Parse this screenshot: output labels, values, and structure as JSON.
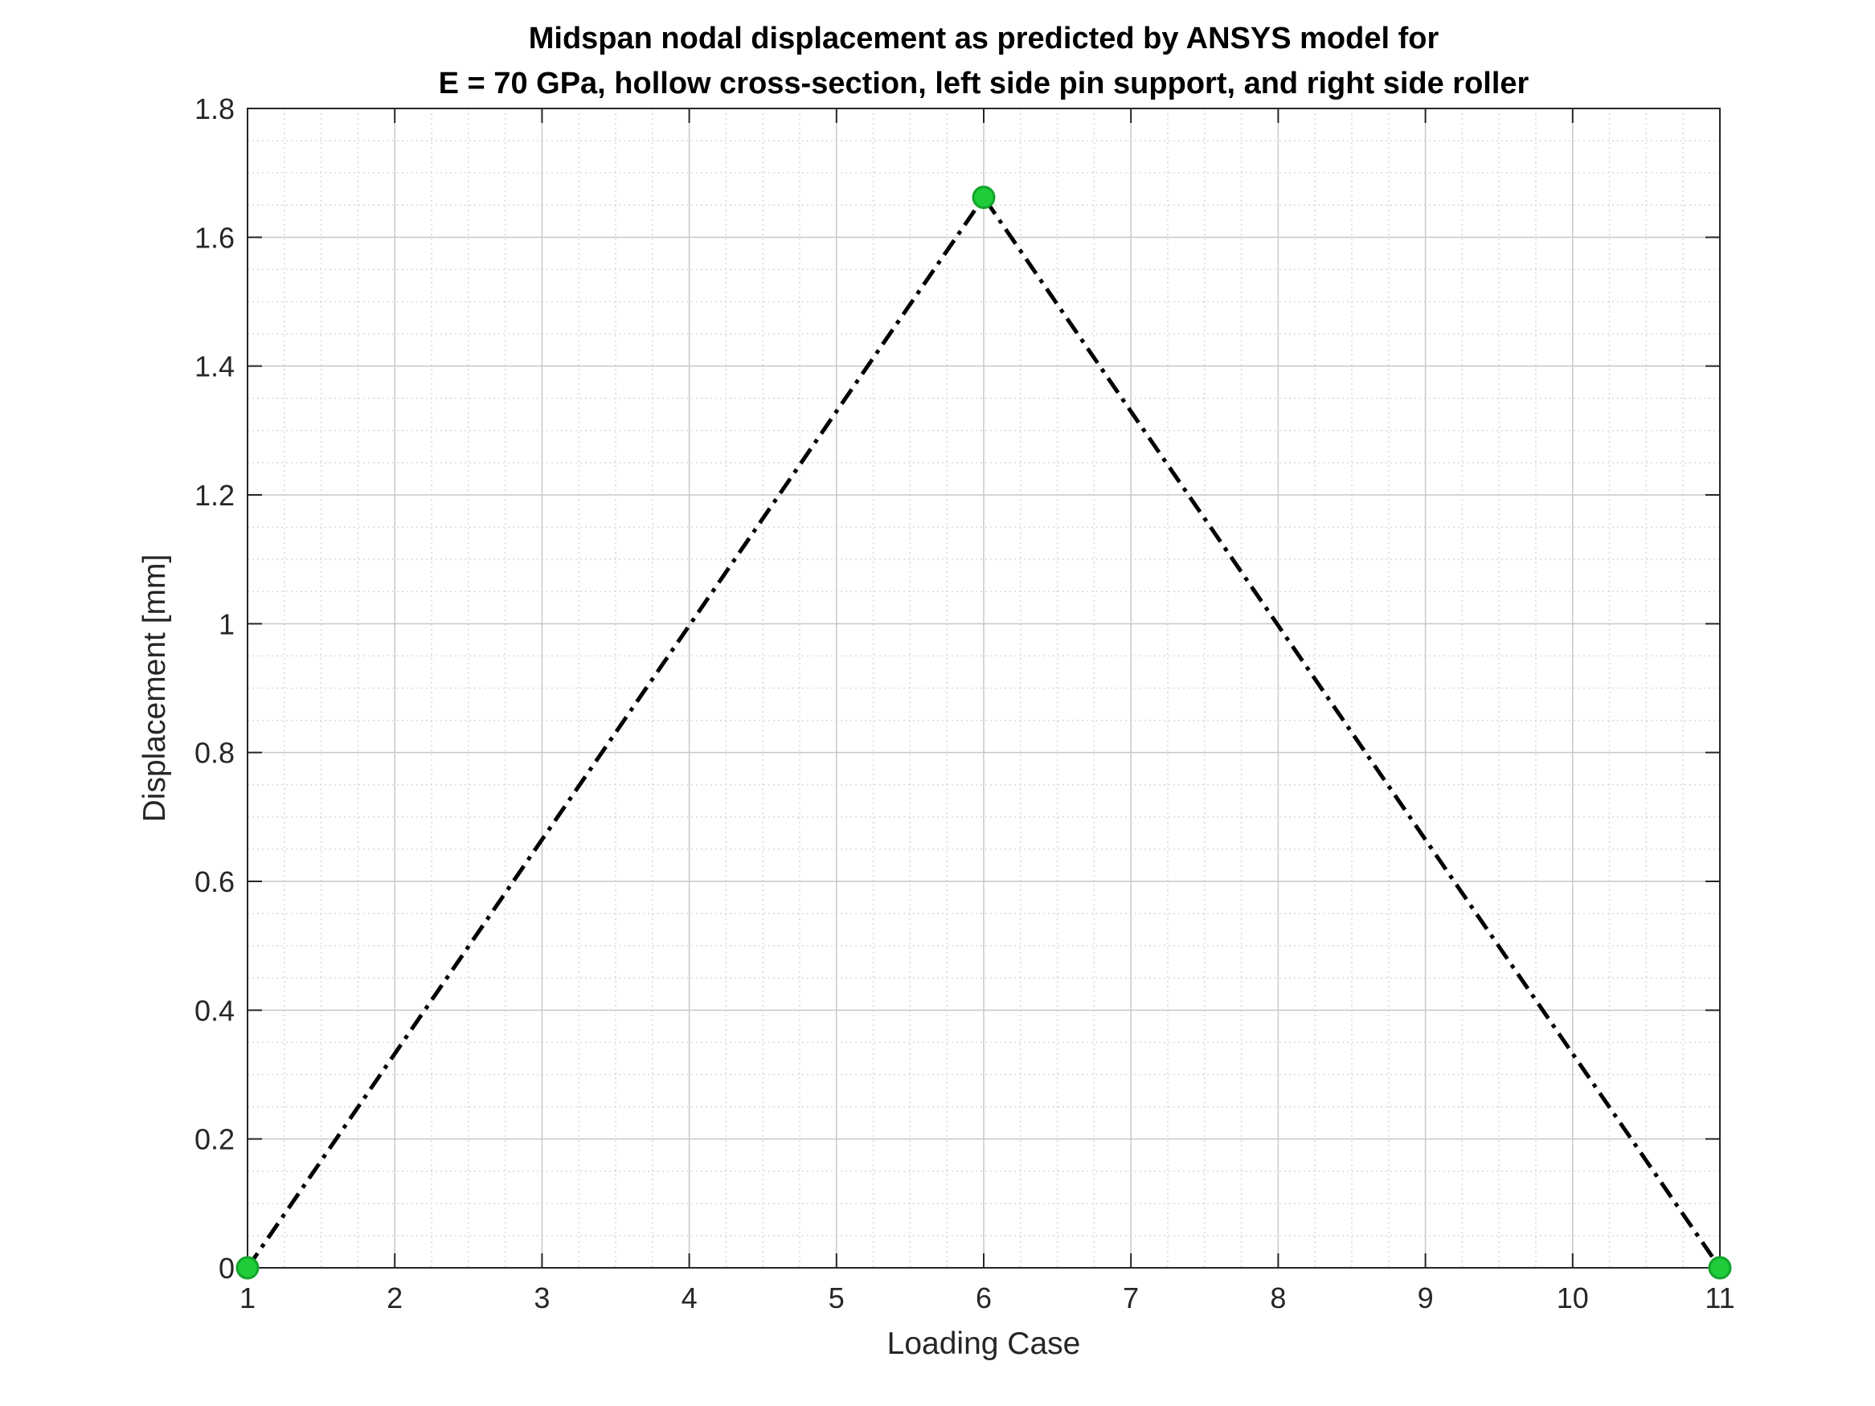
{
  "chart_data": {
    "type": "line",
    "title": [
      "Midspan nodal displacement as predicted by ANSYS model for",
      "E = 70 GPa, hollow cross-section, left side pin support, and right side roller"
    ],
    "xlabel": "Loading Case",
    "ylabel": "Displacement [mm]",
    "xlim": [
      1,
      11
    ],
    "ylim": [
      0,
      1.8
    ],
    "xticks": [
      "1",
      "2",
      "3",
      "4",
      "5",
      "6",
      "7",
      "8",
      "9",
      "10",
      "11"
    ],
    "yticks": [
      "0",
      "0.2",
      "0.4",
      "0.6",
      "0.8",
      "1",
      "1.2",
      "1.4",
      "1.6",
      "1.8"
    ],
    "grid": true,
    "minor_grid": true,
    "series": [
      {
        "x": [
          1,
          6,
          11
        ],
        "y": [
          0,
          1.662,
          0
        ],
        "line_style": "dash-dot",
        "line_color": "#000000",
        "marker": "circle",
        "marker_color": "#1fcc3a"
      }
    ]
  }
}
